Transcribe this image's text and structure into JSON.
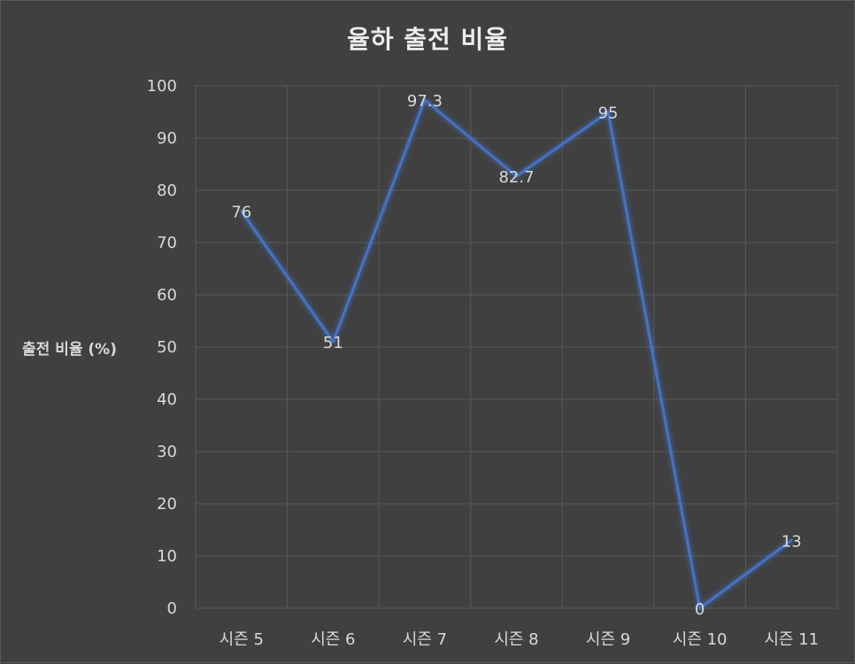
{
  "chart_data": {
    "type": "line",
    "title": "율하 출전 비율",
    "xlabel": "",
    "ylabel": "출전 비율 (%)",
    "categories": [
      "시즌 5",
      "시즌 6",
      "시즌 7",
      "시즌 8",
      "시즌 9",
      "시즌 10",
      "시즌 11"
    ],
    "series": [
      {
        "values": [
          76,
          51,
          97.3,
          82.7,
          95,
          0,
          13
        ],
        "color": "#4472c4"
      }
    ],
    "ylim": [
      0,
      100
    ],
    "yticks": [
      "0",
      "10",
      "20",
      "30",
      "40",
      "50",
      "60",
      "70",
      "80",
      "90",
      "100"
    ],
    "data_labels": [
      "76",
      "51",
      "97.3",
      "82.7",
      "95",
      "0",
      "13"
    ],
    "grid": true,
    "legend": "none"
  },
  "colors": {
    "background": "#404040",
    "gridline": "#595959",
    "text": "#d9d9d9",
    "line": "#4472c4"
  }
}
